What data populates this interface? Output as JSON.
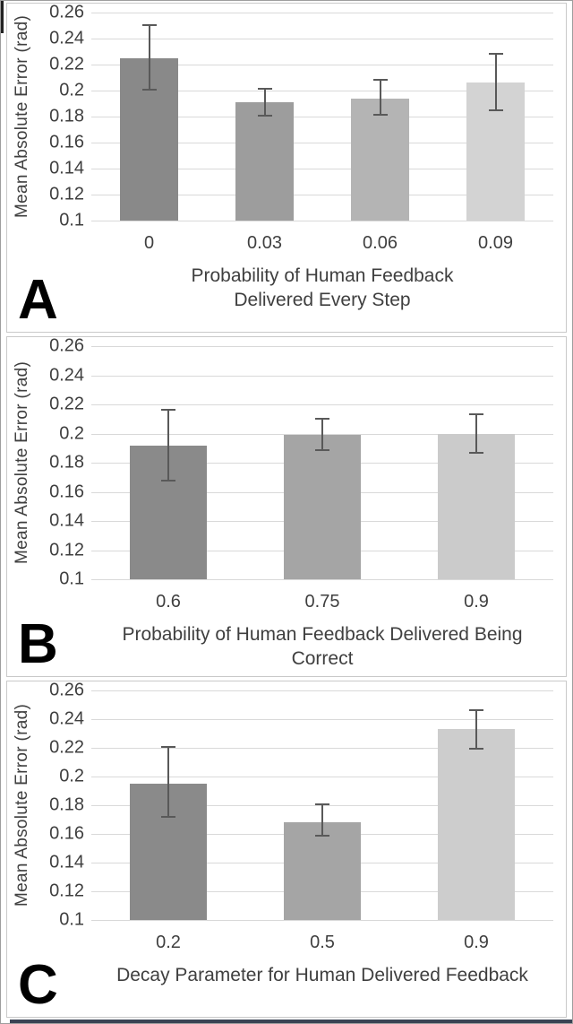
{
  "figure": {
    "ylabel": "Mean Absolute Error (rad)",
    "yticks": [
      "0.26",
      "0.24",
      "0.22",
      "0.2",
      "0.18",
      "0.16",
      "0.14",
      "0.12",
      "0.1"
    ],
    "ylim": [
      0.1,
      0.26
    ],
    "colors": {
      "error_bar": "#595959",
      "gridline": "#d9d9d9",
      "text": "#3f3f3f",
      "panel_border": "#c9c9c9",
      "bottom_rule": "#3a4354"
    }
  },
  "chart_data": [
    {
      "type": "bar",
      "panel": "A",
      "ylabel": "Mean Absolute Error (rad)",
      "xlabel": "Probability of Human Feedback Delivered Every Step",
      "xlabel_lines": [
        "Probability of Human Feedback",
        "Delivered Every Step"
      ],
      "categories": [
        "0",
        "0.03",
        "0.06",
        "0.09"
      ],
      "values": [
        0.225,
        0.191,
        0.194,
        0.206
      ],
      "error_low": [
        0.2,
        0.18,
        0.181,
        0.184
      ],
      "error_high": [
        0.251,
        0.202,
        0.209,
        0.229
      ],
      "bar_colors": [
        "#898989",
        "#9d9d9d",
        "#b4b4b4",
        "#d3d3d3"
      ],
      "yticks": [
        "0.26",
        "0.24",
        "0.22",
        "0.2",
        "0.18",
        "0.16",
        "0.14",
        "0.12",
        "0.1"
      ],
      "ylim": [
        0.1,
        0.26
      ],
      "grid": true
    },
    {
      "type": "bar",
      "panel": "B",
      "ylabel": "Mean Absolute Error (rad)",
      "xlabel": "Probability of Human Feedback Delivered Being Correct",
      "xlabel_lines": [
        "Probability of Human Feedback Delivered Being Correct"
      ],
      "categories": [
        "0.6",
        "0.75",
        "0.9"
      ],
      "values": [
        0.192,
        0.199,
        0.2
      ],
      "error_low": [
        0.167,
        0.188,
        0.186
      ],
      "error_high": [
        0.217,
        0.211,
        0.214
      ],
      "bar_colors": [
        "#8a8a8a",
        "#a5a5a5",
        "#cbcbcb"
      ],
      "yticks": [
        "0.26",
        "0.24",
        "0.22",
        "0.2",
        "0.18",
        "0.16",
        "0.14",
        "0.12",
        "0.1"
      ],
      "ylim": [
        0.1,
        0.26
      ],
      "grid": true
    },
    {
      "type": "bar",
      "panel": "C",
      "ylabel": "Mean Absolute Error (rad)",
      "xlabel": "Decay Parameter for Human Delivered Feedback",
      "xlabel_lines": [
        "Decay Parameter for Human Delivered Feedback"
      ],
      "categories": [
        "0.2",
        "0.5",
        "0.9"
      ],
      "values": [
        0.195,
        0.168,
        0.233
      ],
      "error_low": [
        0.171,
        0.158,
        0.219
      ],
      "error_high": [
        0.221,
        0.181,
        0.247
      ],
      "bar_colors": [
        "#8a8a8a",
        "#a5a5a5",
        "#cdcdcd"
      ],
      "yticks": [
        "0.26",
        "0.24",
        "0.22",
        "0.2",
        "0.18",
        "0.16",
        "0.14",
        "0.12",
        "0.1"
      ],
      "ylim": [
        0.1,
        0.26
      ],
      "grid": true
    }
  ]
}
